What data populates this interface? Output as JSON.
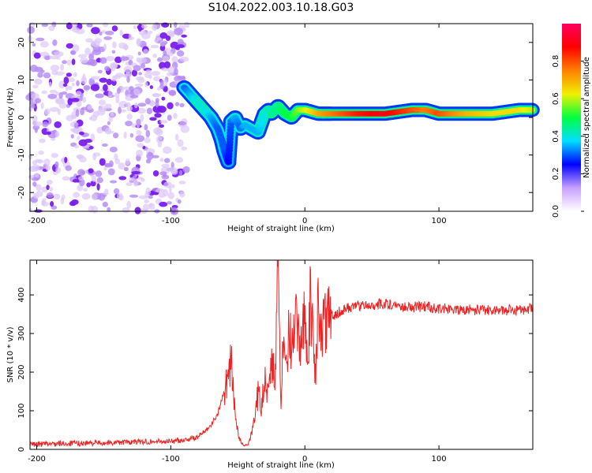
{
  "title": "S104.2022.003.10.18.G03",
  "chart_data": [
    {
      "type": "heatmap",
      "xlabel": "Height of straight line (km)",
      "ylabel": "Frequency (Hz)",
      "xlim": [
        -205,
        170
      ],
      "ylim": [
        -25,
        25
      ],
      "x_ticks": [
        -200,
        -100,
        0,
        100
      ],
      "x_tick_labels": [
        "-200",
        "-100",
        "0",
        "100"
      ],
      "y_ticks": [
        20,
        10,
        0,
        -10,
        -20
      ],
      "y_tick_labels": [
        "20",
        "10",
        "0",
        "-10",
        "-20"
      ],
      "colorbar": {
        "label": "Normalized spectral amplitude",
        "range": [
          0,
          1
        ],
        "ticks": [
          0.0,
          0.2,
          0.4,
          0.6,
          0.8
        ],
        "tick_labels": [
          "0.0",
          "0.2",
          "0.4",
          "0.6",
          "0.8"
        ],
        "colors": [
          "#ffffff",
          "#c8a0ff",
          "#0000ff",
          "#00e0ff",
          "#00ff40",
          "#f0f000",
          "#ff8000",
          "#ff0000",
          "#ff0060"
        ]
      },
      "noise_region": {
        "x": [
          -205,
          -88
        ],
        "y": [
          -25,
          25
        ],
        "level": 0.15
      },
      "ridge": {
        "x": [
          -90,
          -85,
          -80,
          -75,
          -70,
          -65,
          -62,
          -60,
          -57,
          -55,
          -52,
          -48,
          -45,
          -40,
          -35,
          -30,
          -27,
          -25,
          -20,
          -15,
          -10,
          -5,
          0,
          10,
          20,
          40,
          60,
          80,
          90,
          100,
          120,
          140,
          160,
          170
        ],
        "y": [
          8,
          6,
          4,
          2,
          0,
          -3,
          -6,
          -9,
          -12,
          -1,
          0,
          -3,
          -2,
          -3,
          -4,
          1,
          2,
          1,
          3,
          1,
          0,
          2,
          2,
          1,
          1,
          1,
          1,
          2,
          2,
          1,
          1,
          1,
          2,
          2
        ],
        "amplitude": [
          0.3,
          0.35,
          0.4,
          0.4,
          0.35,
          0.3,
          0.3,
          0.3,
          0.25,
          0.3,
          0.35,
          0.3,
          0.35,
          0.35,
          0.35,
          0.4,
          0.4,
          0.45,
          0.45,
          0.5,
          0.5,
          0.55,
          0.6,
          0.7,
          0.75,
          0.85,
          0.9,
          0.8,
          0.75,
          0.8,
          0.7,
          0.65,
          0.65,
          0.6
        ]
      }
    },
    {
      "type": "line",
      "xlabel": "Height of straight line (km)",
      "ylabel": "SNR (10 * v/v)",
      "xlim": [
        -205,
        170
      ],
      "ylim": [
        0,
        490
      ],
      "x_ticks": [
        -200,
        -100,
        0,
        100
      ],
      "x_tick_labels": [
        "-200",
        "-100",
        "0",
        "100"
      ],
      "y_ticks": [
        0,
        100,
        200,
        300,
        400
      ],
      "y_tick_labels": [
        "0",
        "100",
        "200",
        "300",
        "400"
      ],
      "color": "#ee2222",
      "series": [
        {
          "x": [
            -205,
            -180,
            -150,
            -120,
            -100,
            -90,
            -80,
            -75,
            -70,
            -65,
            -60,
            -55,
            -52,
            -50,
            -48,
            -45,
            -42,
            -40,
            -38,
            -35,
            -32,
            -30,
            -28,
            -25,
            -22,
            -20,
            -18,
            -16,
            -14,
            -12,
            -10,
            -8,
            -6,
            -4,
            -2,
            0,
            2,
            4,
            6,
            8,
            10,
            12,
            14,
            16,
            18,
            20,
            25,
            30,
            40,
            50,
            60,
            70,
            80,
            90,
            100,
            120,
            140,
            160,
            170
          ],
          "y": [
            10,
            12,
            14,
            17,
            18,
            22,
            28,
            45,
            60,
            90,
            150,
            235,
            90,
            45,
            20,
            8,
            15,
            40,
            80,
            140,
            110,
            190,
            150,
            250,
            170,
            485,
            100,
            300,
            190,
            340,
            250,
            280,
            330,
            240,
            310,
            400,
            190,
            380,
            290,
            200,
            400,
            275,
            330,
            310,
            340,
            345,
            355,
            365,
            372,
            375,
            377,
            373,
            368,
            370,
            365,
            362,
            360,
            362,
            365
          ]
        }
      ]
    }
  ]
}
